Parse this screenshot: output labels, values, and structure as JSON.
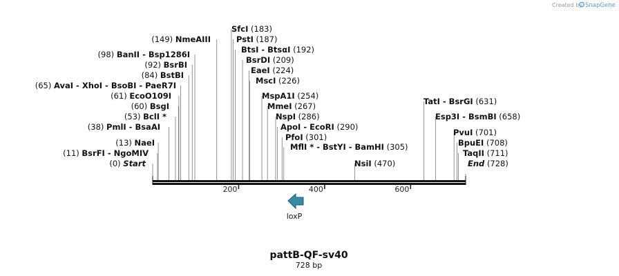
{
  "credit": {
    "prefix": "Created by",
    "brand": "SnapGene"
  },
  "map": {
    "title": "pattB-QF-sv40",
    "length_label": "728 bp",
    "length_bp": 728,
    "ticks": [
      {
        "pos": 200,
        "label": "200"
      },
      {
        "pos": 400,
        "label": "400"
      },
      {
        "pos": 600,
        "label": "600"
      }
    ]
  },
  "sites": [
    {
      "name": "SfcI",
      "pos": 183,
      "label": "(183)"
    },
    {
      "name": "PstI",
      "pos": 187,
      "label": "(187)"
    },
    {
      "name": "NmeAIII",
      "pos": 149,
      "label": "(149)"
    },
    {
      "name": "BtsI - BtsαI",
      "pos": 192,
      "label": "(192)"
    },
    {
      "name": "BanII - Bsp1286I",
      "pos": 98,
      "label": "(98)"
    },
    {
      "name": "BsrDI",
      "pos": 209,
      "label": "(209)"
    },
    {
      "name": "BsrBI",
      "pos": 92,
      "label": "(92)"
    },
    {
      "name": "EaeI",
      "pos": 224,
      "label": "(224)"
    },
    {
      "name": "BstBI",
      "pos": 84,
      "label": "(84)"
    },
    {
      "name": "MscI",
      "pos": 226,
      "label": "(226)"
    },
    {
      "name": "AvaI - XhoI - BsoBI - PaeR7I",
      "pos": 65,
      "label": "(65)"
    },
    {
      "name": "EcoO109I",
      "pos": 61,
      "label": "(61)"
    },
    {
      "name": "MspA1I",
      "pos": 254,
      "label": "(254)"
    },
    {
      "name": "BsgI",
      "pos": 60,
      "label": "(60)"
    },
    {
      "name": "MmeI",
      "pos": 267,
      "label": "(267)"
    },
    {
      "name": "TatI - BsrGI",
      "pos": 631,
      "label": "(631)"
    },
    {
      "name": "BclI *",
      "pos": 53,
      "label": "(53)"
    },
    {
      "name": "NspI",
      "pos": 286,
      "label": "(286)"
    },
    {
      "name": "Esp3I - BsmBI",
      "pos": 658,
      "label": "(658)"
    },
    {
      "name": "PmlI - BsaAI",
      "pos": 38,
      "label": "(38)"
    },
    {
      "name": "ApoI - EcoRI",
      "pos": 290,
      "label": "(290)"
    },
    {
      "name": "PvuI",
      "pos": 701,
      "label": "(701)"
    },
    {
      "name": "PfoI",
      "pos": 301,
      "label": "(301)"
    },
    {
      "name": "NaeI",
      "pos": 13,
      "label": "(13)"
    },
    {
      "name": "BpuEI",
      "pos": 708,
      "label": "(708)"
    },
    {
      "name": "MflI * - BstYI - BamHI",
      "pos": 305,
      "label": "(305)"
    },
    {
      "name": "BsrFI - NgoMIV",
      "pos": 11,
      "label": "(11)"
    },
    {
      "name": "TaqII",
      "pos": 711,
      "label": "(711)"
    },
    {
      "name": "Start",
      "pos": 0,
      "label": "(0)"
    },
    {
      "name": "NsiI",
      "pos": 470,
      "label": "(470)"
    },
    {
      "name": "End",
      "pos": 728,
      "label": "(728)"
    }
  ],
  "features": [
    {
      "name": "loxP",
      "color": "#3a8aa4",
      "direction": "reverse"
    }
  ]
}
